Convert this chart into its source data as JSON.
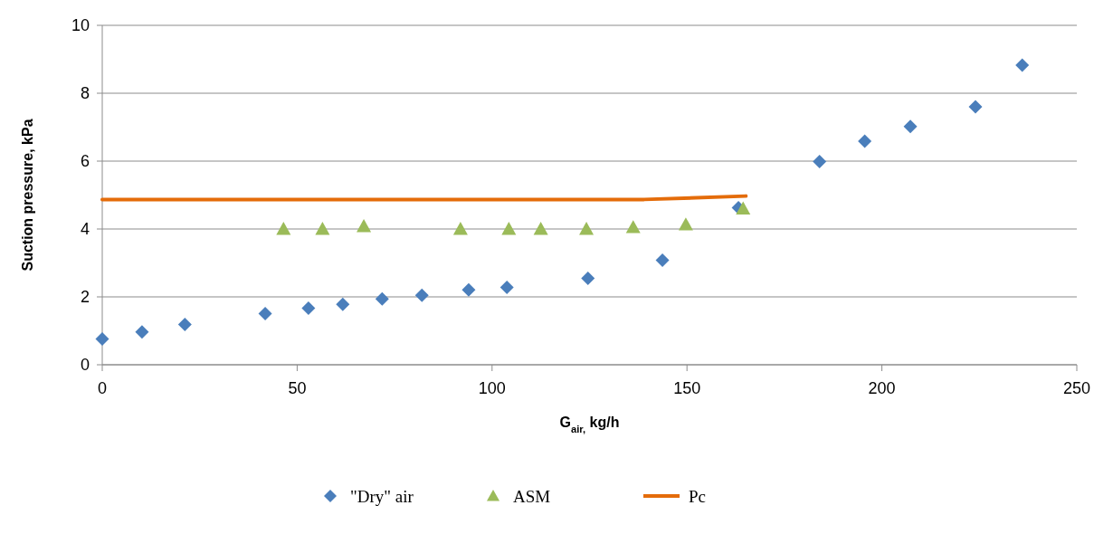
{
  "chart_data": {
    "type": "scatter",
    "xlabel": "G$_{air,}$ kg/h",
    "ylabel": "Suction pressure, kPa",
    "xlim": [
      0,
      250
    ],
    "xticks": [
      0,
      50,
      100,
      150,
      200,
      250
    ],
    "ylim": [
      0,
      10
    ],
    "yticks": [
      0,
      2,
      4,
      6,
      8,
      10
    ],
    "grid": "y",
    "legend": "bottom",
    "series": [
      {
        "name": "\"Dry\" air",
        "marker": "diamond",
        "color": "#4a7ebb",
        "x": [
          0,
          10.2,
          21.2,
          41.8,
          52.9,
          61.7,
          71.8,
          82,
          94,
          103.8,
          124.6,
          143.7,
          163.2,
          184,
          195.6,
          207.3,
          224,
          236
        ],
        "values": [
          0.76,
          0.97,
          1.19,
          1.51,
          1.67,
          1.78,
          1.94,
          2.05,
          2.21,
          2.28,
          2.55,
          3.08,
          4.63,
          5.99,
          6.59,
          7.02,
          7.6,
          8.83
        ]
      },
      {
        "name": "ASM",
        "marker": "triangle",
        "color": "#9bbb59",
        "x": [
          46.5,
          56.5,
          67.1,
          91.9,
          104.3,
          112.5,
          124.2,
          136.2,
          149.7,
          164.4
        ],
        "values": [
          4,
          4,
          4.08,
          4,
          4,
          4,
          4,
          4.05,
          4.13,
          4.6
        ]
      },
      {
        "name": "Pc",
        "type": "line",
        "color": "#e46c0a",
        "x": [
          0,
          139,
          165.1
        ],
        "values": [
          4.87,
          4.87,
          4.97
        ]
      }
    ]
  }
}
